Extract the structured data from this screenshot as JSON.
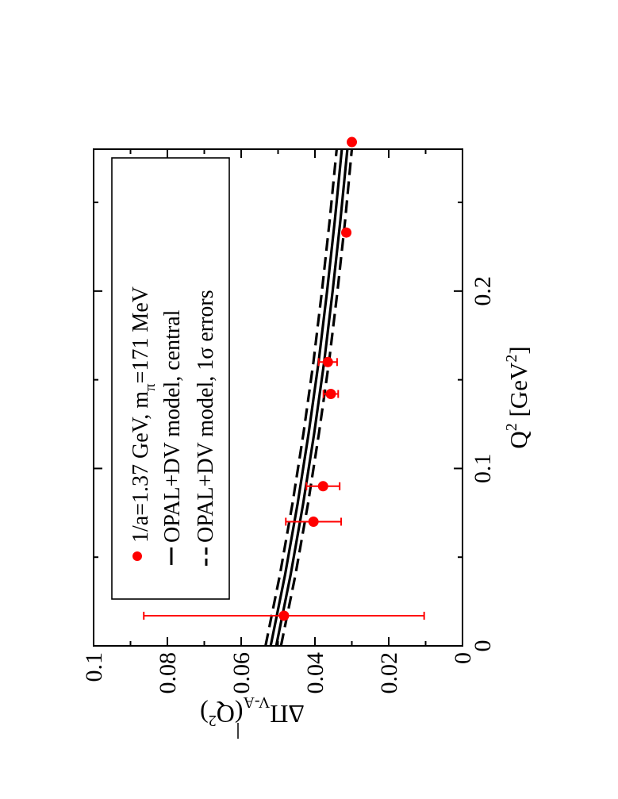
{
  "chart_data": {
    "type": "scatter",
    "orientation": "rotated-90-ccw",
    "title": "",
    "xlabel": "Q",
    "xlabel_sup": "2",
    "xlabel_units": " [GeV",
    "xlabel_units_sup": "2",
    "xlabel_units_close": "]",
    "ylabel": "ΔΠ",
    "ylabel_sub": "V-A",
    "ylabel_args": "(Q",
    "ylabel_args_sup": "2",
    "ylabel_args_close": ")",
    "xlim": [
      0,
      0.28
    ],
    "ylim": [
      0,
      0.1
    ],
    "x_ticks": [
      {
        "value": 0,
        "label": "0"
      },
      {
        "value": 0.1,
        "label": "0.1"
      },
      {
        "value": 0.2,
        "label": "0.2"
      }
    ],
    "x_minor_ticks": [
      0.05,
      0.15,
      0.25
    ],
    "y_ticks": [
      {
        "value": 0,
        "label": "0"
      },
      {
        "value": 0.02,
        "label": "0.02"
      },
      {
        "value": 0.04,
        "label": "0.04"
      },
      {
        "value": 0.06,
        "label": "0.06"
      },
      {
        "value": 0.08,
        "label": "0.08"
      },
      {
        "value": 0.1,
        "label": "0.1"
      }
    ],
    "y_minor_ticks": [
      0.01,
      0.03,
      0.05,
      0.07,
      0.09
    ],
    "grid": false,
    "legend_position": "top-right",
    "legend": [
      {
        "style": "marker",
        "name": "1/a=1.37 GeV, m",
        "name_sub": "π",
        "name_tail": "=171 MeV"
      },
      {
        "style": "solid",
        "name": "OPAL+DV model, central"
      },
      {
        "style": "dashed",
        "name": "OPAL+DV model, 1σ errors"
      }
    ],
    "series": [
      {
        "kind": "points",
        "color": "#ff0000",
        "points": [
          {
            "x": 0.017,
            "y": 0.0484,
            "err": 0.038
          },
          {
            "x": 0.07,
            "y": 0.0404,
            "err": 0.0075
          },
          {
            "x": 0.09,
            "y": 0.0378,
            "err": 0.0045
          },
          {
            "x": 0.142,
            "y": 0.0357,
            "err": 0.002
          },
          {
            "x": 0.16,
            "y": 0.0365,
            "err": 0.0025
          },
          {
            "x": 0.233,
            "y": 0.0315,
            "err": 0.0008
          },
          {
            "x": 0.284,
            "y": 0.03,
            "err": 0.0006
          }
        ]
      },
      {
        "kind": "line",
        "style": "solid",
        "color": "#000000",
        "x": [
          0,
          0.04,
          0.08,
          0.12,
          0.16,
          0.2,
          0.24,
          0.28,
          0.29
        ],
        "curves": [
          [
            0.0505,
            0.0466,
            0.0432,
            0.0402,
            0.0375,
            0.0352,
            0.0331,
            0.0312,
            0.0308
          ],
          [
            0.052,
            0.0481,
            0.0447,
            0.0417,
            0.039,
            0.0367,
            0.0346,
            0.0327,
            0.0322
          ]
        ]
      },
      {
        "kind": "line",
        "style": "dashed",
        "color": "#000000",
        "x": [
          0,
          0.04,
          0.08,
          0.12,
          0.16,
          0.2,
          0.24,
          0.28,
          0.29
        ],
        "curves": [
          [
            0.0492,
            0.0453,
            0.0419,
            0.0389,
            0.0362,
            0.0339,
            0.0318,
            0.03,
            0.0296
          ],
          [
            0.0534,
            0.0495,
            0.0461,
            0.0431,
            0.0404,
            0.0381,
            0.036,
            0.0341,
            0.0336
          ]
        ]
      }
    ]
  }
}
